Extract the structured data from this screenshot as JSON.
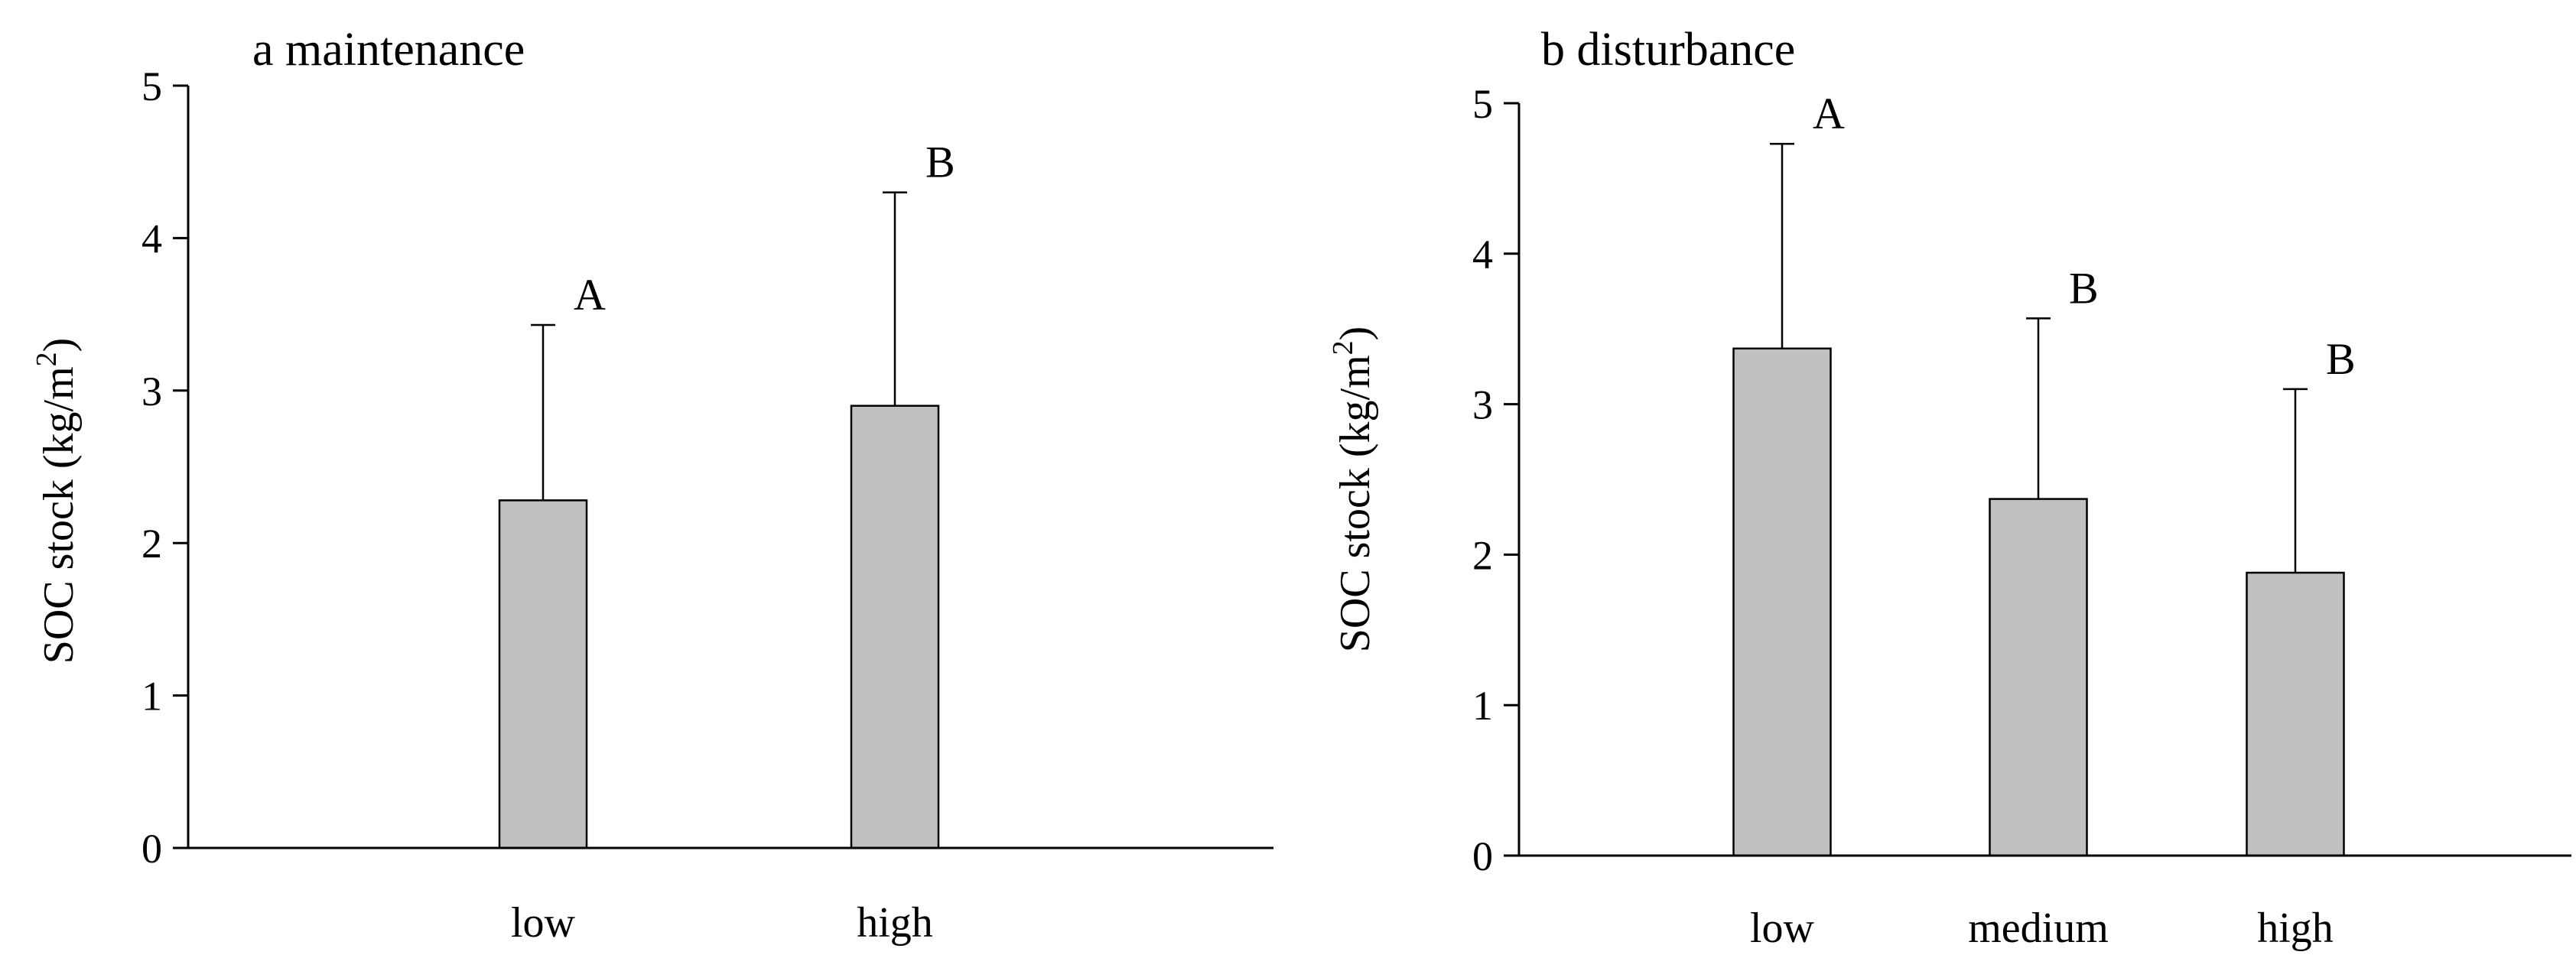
{
  "chart_data": [
    {
      "type": "bar",
      "title": "a maintenance",
      "ylabel": "SOC stock (kg/m",
      "ylabel_sup": "2",
      "ylabel_close": ")",
      "ylim": [
        0,
        5
      ],
      "yticks": [
        "0",
        "1",
        "2",
        "3",
        "4",
        "5"
      ],
      "categories": [
        "low",
        "high"
      ],
      "values": [
        2.28,
        2.9
      ],
      "errors": [
        1.15,
        1.4
      ],
      "letters": [
        "A",
        "B"
      ],
      "bar_color": "#c0c0c0"
    },
    {
      "type": "bar",
      "title": "b disturbance",
      "ylabel": "SOC stock (kg/m",
      "ylabel_sup": "2",
      "ylabel_close": ")",
      "ylim": [
        0,
        5
      ],
      "yticks": [
        "0",
        "1",
        "2",
        "3",
        "4",
        "5"
      ],
      "categories": [
        "low",
        "medium",
        "high"
      ],
      "values": [
        3.37,
        2.37,
        1.88
      ],
      "errors": [
        1.36,
        1.2,
        1.22
      ],
      "letters": [
        "A",
        "B",
        "B"
      ],
      "bar_color": "#c0c0c0"
    }
  ]
}
